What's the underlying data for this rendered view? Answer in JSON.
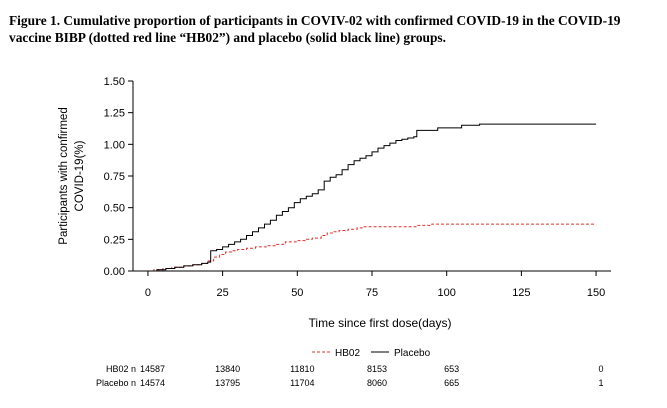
{
  "caption": "Figure 1. Cumulative proportion of participants in COVIV-02 with confirmed COVID-19 in the COVID-19 vaccine BIBP (dotted red line “HB02”) and placebo (solid black line) groups.",
  "chart_data": {
    "type": "line",
    "title": "",
    "xlabel": "Time since first dose(days)",
    "ylabel_lines": [
      "Participants with confirmed",
      "COVID-19(%)"
    ],
    "xlim": [
      -5,
      155
    ],
    "ylim": [
      0,
      1.5
    ],
    "xticks": [
      0,
      25,
      50,
      75,
      100,
      125,
      150
    ],
    "yticks": [
      0.0,
      0.25,
      0.5,
      0.75,
      1.0,
      1.25,
      1.5
    ],
    "ytick_labels": [
      "0.00",
      "0.25",
      "0.50",
      "0.75",
      "1.00",
      "1.25",
      "1.50"
    ],
    "grid": false,
    "legend_position": "bottom-center",
    "series": [
      {
        "name": "HB02",
        "style": "dashed",
        "color": "#e0302c",
        "points": [
          [
            0,
            0
          ],
          [
            2,
            0.01
          ],
          [
            5,
            0.02
          ],
          [
            8,
            0.03
          ],
          [
            12,
            0.04
          ],
          [
            15,
            0.05
          ],
          [
            18,
            0.06
          ],
          [
            20,
            0.08
          ],
          [
            22,
            0.11
          ],
          [
            24,
            0.13
          ],
          [
            26,
            0.15
          ],
          [
            28,
            0.16
          ],
          [
            30,
            0.17
          ],
          [
            33,
            0.18
          ],
          [
            36,
            0.19
          ],
          [
            40,
            0.2
          ],
          [
            43,
            0.21
          ],
          [
            46,
            0.23
          ],
          [
            50,
            0.24
          ],
          [
            53,
            0.25
          ],
          [
            55,
            0.26
          ],
          [
            58,
            0.28
          ],
          [
            60,
            0.3
          ],
          [
            62,
            0.31
          ],
          [
            64,
            0.32
          ],
          [
            67,
            0.33
          ],
          [
            70,
            0.34
          ],
          [
            72,
            0.35
          ],
          [
            80,
            0.35
          ],
          [
            90,
            0.36
          ],
          [
            95,
            0.37
          ],
          [
            100,
            0.37
          ],
          [
            150,
            0.37
          ]
        ]
      },
      {
        "name": "Placebo",
        "style": "solid",
        "color": "#000000",
        "points": [
          [
            0,
            0
          ],
          [
            3,
            0.01
          ],
          [
            6,
            0.02
          ],
          [
            9,
            0.03
          ],
          [
            12,
            0.04
          ],
          [
            15,
            0.05
          ],
          [
            18,
            0.06
          ],
          [
            20,
            0.07
          ],
          [
            21,
            0.16
          ],
          [
            23,
            0.17
          ],
          [
            25,
            0.19
          ],
          [
            27,
            0.21
          ],
          [
            29,
            0.23
          ],
          [
            31,
            0.25
          ],
          [
            33,
            0.28
          ],
          [
            35,
            0.31
          ],
          [
            37,
            0.34
          ],
          [
            39,
            0.37
          ],
          [
            41,
            0.4
          ],
          [
            43,
            0.44
          ],
          [
            45,
            0.47
          ],
          [
            47,
            0.5
          ],
          [
            49,
            0.54
          ],
          [
            51,
            0.57
          ],
          [
            53,
            0.59
          ],
          [
            55,
            0.61
          ],
          [
            57,
            0.64
          ],
          [
            59,
            0.71
          ],
          [
            61,
            0.74
          ],
          [
            63,
            0.76
          ],
          [
            65,
            0.8
          ],
          [
            67,
            0.84
          ],
          [
            69,
            0.87
          ],
          [
            71,
            0.89
          ],
          [
            73,
            0.91
          ],
          [
            75,
            0.94
          ],
          [
            77,
            0.97
          ],
          [
            79,
            0.99
          ],
          [
            81,
            1.01
          ],
          [
            83,
            1.03
          ],
          [
            85,
            1.04
          ],
          [
            87,
            1.05
          ],
          [
            89,
            1.06
          ],
          [
            90,
            1.11
          ],
          [
            96,
            1.11
          ],
          [
            97,
            1.13
          ],
          [
            104,
            1.13
          ],
          [
            105,
            1.15
          ],
          [
            110,
            1.15
          ],
          [
            111,
            1.16
          ],
          [
            150,
            1.16
          ]
        ]
      }
    ],
    "risk_table": {
      "times": [
        0,
        25,
        50,
        75,
        100,
        150
      ],
      "rows": [
        {
          "label": "HB02 n",
          "values": [
            "14587",
            "13840",
            "11810",
            "8153",
            "653",
            "0"
          ]
        },
        {
          "label": "Placebo n",
          "values": [
            "14574",
            "13795",
            "11704",
            "8060",
            "665",
            "1"
          ]
        }
      ]
    }
  }
}
